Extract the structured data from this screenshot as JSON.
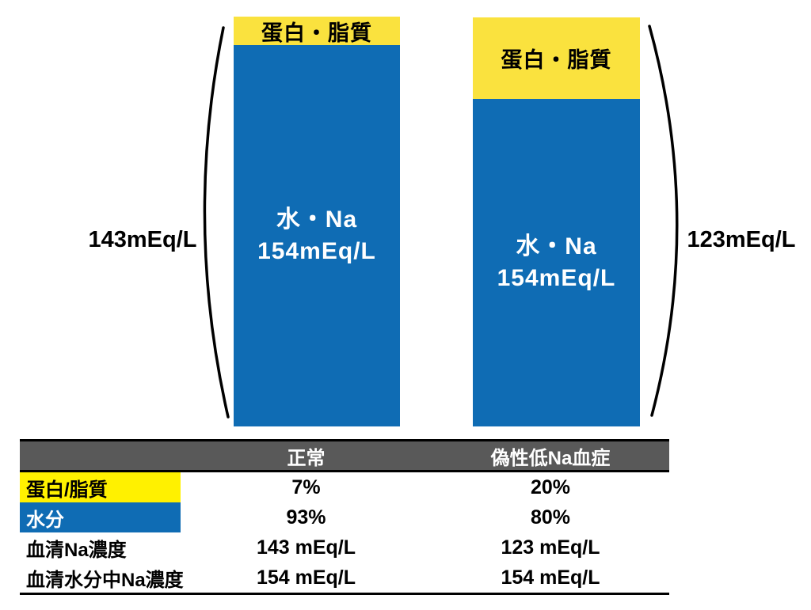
{
  "colors": {
    "bar_yellow": "#FAE23E",
    "bar_blue": "#0F6CB4",
    "table_yellow": "#FFF100",
    "table_blue": "#0F6CB4",
    "table_header_gray": "#595959",
    "bracket_black": "#000000"
  },
  "figure": {
    "bars": [
      {
        "name": "normal",
        "top_label": "蛋白・脂質",
        "body_line1": "水・Na",
        "body_line2": "154mEq/L",
        "side_label": "143mEq/L"
      },
      {
        "name": "pseudo",
        "top_label": "蛋白・脂質",
        "body_line1": "水・Na",
        "body_line2": "154mEq/L",
        "side_label": "123mEq/L"
      }
    ]
  },
  "chart_data": {
    "type": "bar",
    "stacked": true,
    "title": "",
    "categories": [
      "正常",
      "偽性低Na血症"
    ],
    "series": [
      {
        "name": "蛋白/脂質",
        "values": [
          7,
          20
        ],
        "unit": "%",
        "color": "#FAE23E"
      },
      {
        "name": "水分",
        "values": [
          93,
          80
        ],
        "unit": "%",
        "color": "#0F6CB4"
      }
    ],
    "annotations": [
      {
        "bar": "正常",
        "water_segment_label": "水・Na 154mEq/L",
        "bracket_label": "143mEq/L"
      },
      {
        "bar": "偽性低Na血症",
        "water_segment_label": "水・Na 154mEq/L",
        "bracket_label": "123mEq/L"
      }
    ],
    "legend": "none",
    "grid": false
  },
  "table": {
    "header": {
      "col_label": "",
      "col_normal": "正常",
      "col_pseudo": "偽性低Na血症"
    },
    "rows": [
      {
        "label": "蛋白/脂質",
        "normal": "7%",
        "pseudo": "20%"
      },
      {
        "label": "水分",
        "normal": "93%",
        "pseudo": "80%"
      },
      {
        "label": "血清Na濃度",
        "normal": "143 mEq/L",
        "pseudo": "123 mEq/L"
      },
      {
        "label": "血清水分中Na濃度",
        "normal": "154 mEq/L",
        "pseudo": "154 mEq/L"
      }
    ]
  }
}
